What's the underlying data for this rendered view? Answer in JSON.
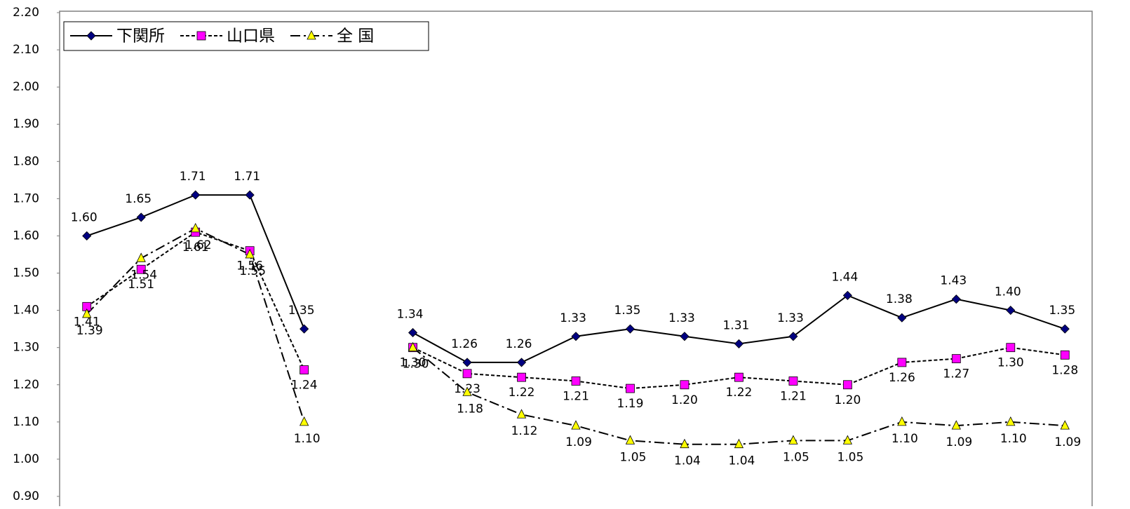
{
  "chart_data": {
    "type": "line",
    "categories": [
      null,
      null,
      null,
      null,
      null,
      null,
      null,
      null,
      null,
      null,
      null,
      null,
      null,
      null,
      null,
      null,
      null,
      null,
      null
    ],
    "series": [
      {
        "name": "下関所",
        "color": "#000080",
        "marker": "diamond",
        "line_style": "solid",
        "values": [
          1.6,
          1.65,
          1.71,
          1.71,
          1.35,
          null,
          1.34,
          1.26,
          1.26,
          1.33,
          1.35,
          1.33,
          1.31,
          1.33,
          1.44,
          1.38,
          1.43,
          1.4,
          1.35
        ],
        "value_labels": [
          "1.60",
          "1.65",
          "1.71",
          "1.71",
          "1.35",
          null,
          "1.34",
          "1.26",
          "1.26",
          "1.33",
          "1.35",
          "1.33",
          "1.31",
          "1.33",
          "1.44",
          "1.38",
          "1.43",
          "1.40",
          "1.35"
        ]
      },
      {
        "name": "山口県",
        "color": "#ff00ff",
        "marker": "square",
        "line_style": "dashed",
        "values": [
          1.41,
          1.51,
          1.61,
          1.56,
          1.24,
          null,
          1.3,
          1.23,
          1.22,
          1.21,
          1.19,
          1.2,
          1.22,
          1.21,
          1.2,
          1.26,
          1.27,
          1.3,
          1.28
        ],
        "value_labels": [
          "1.41",
          "1.51",
          "1.61",
          "1.56",
          "1.24",
          null,
          "1.30",
          "1.23",
          "1.22",
          "1.21",
          "1.19",
          "1.20",
          "1.22",
          "1.21",
          "1.20",
          "1.26",
          "1.27",
          "1.30",
          "1.28"
        ]
      },
      {
        "name": "全 国",
        "color": "#ffff00",
        "marker": "triangle",
        "line_style": "dashdot",
        "values": [
          1.39,
          1.54,
          1.62,
          1.55,
          1.1,
          null,
          1.3,
          1.18,
          1.12,
          1.09,
          1.05,
          1.04,
          1.04,
          1.05,
          1.05,
          1.1,
          1.09,
          1.1,
          1.09
        ],
        "value_labels": [
          "1.39",
          "1.54",
          "1.62",
          "1.55",
          "1.10",
          null,
          "1.30",
          "1.18",
          "1.12",
          "1.09",
          "1.05",
          "1.04",
          "1.04",
          "1.05",
          "1.05",
          "1.10",
          "1.09",
          "1.10",
          "1.09"
        ]
      }
    ],
    "ylim": [
      0.9,
      2.2
    ],
    "yticks": [
      {
        "value": 0.9,
        "label": "0.90"
      },
      {
        "value": 1,
        "label": "1.00"
      },
      {
        "value": 1.1,
        "label": "1.10"
      },
      {
        "value": 1.2,
        "label": "1.20"
      },
      {
        "value": 1.3,
        "label": "1.30"
      },
      {
        "value": 1.4,
        "label": "1.40"
      },
      {
        "value": 1.5,
        "label": "1.50"
      },
      {
        "value": 1.6,
        "label": "1.60"
      },
      {
        "value": 1.7,
        "label": "1.70"
      },
      {
        "value": 1.8,
        "label": "1.80"
      },
      {
        "value": 1.9,
        "label": "1.90"
      },
      {
        "value": 2,
        "label": "2.00"
      },
      {
        "value": 2.1,
        "label": "2.10"
      },
      {
        "value": 2.2,
        "label": "2.20"
      }
    ],
    "grid": false,
    "legend": "upper left"
  }
}
